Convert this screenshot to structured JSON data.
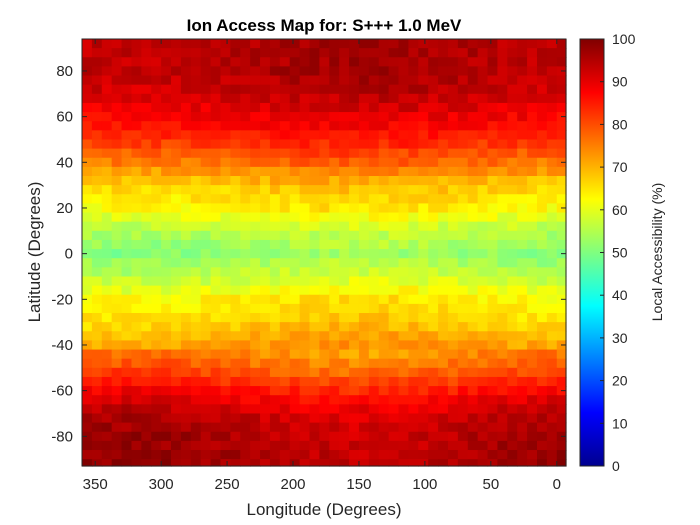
{
  "chart_data": {
    "type": "heatmap",
    "title": "Ion Access Map for: S+++ 1.0 MeV",
    "xlabel": "Longitude (Degrees)",
    "ylabel": "Latitude (Degrees)",
    "colorbar_label": "Local Accessibility (%)",
    "colormap": "jet",
    "xlim": [
      360,
      -7
    ],
    "x_reversed": true,
    "ylim": [
      -93,
      94
    ],
    "x_ticks": [
      350,
      300,
      250,
      200,
      150,
      100,
      50,
      0
    ],
    "x_tick_labels": [
      "350",
      "300",
      "250",
      "200",
      "150",
      "100",
      "50",
      "0"
    ],
    "y_ticks": [
      80,
      60,
      40,
      20,
      0,
      -20,
      -40,
      -60,
      -80
    ],
    "y_tick_labels": [
      "80",
      "60",
      "40",
      "20",
      "0",
      "-20",
      "-40",
      "-60",
      "-80"
    ],
    "clim": [
      0,
      100
    ],
    "colorbar_ticks": [
      0,
      10,
      20,
      30,
      40,
      50,
      60,
      70,
      80,
      90,
      100
    ],
    "colorbar_tick_labels": [
      "0",
      "10",
      "20",
      "30",
      "40",
      "50",
      "60",
      "70",
      "80",
      "90",
      "100"
    ],
    "grid": false,
    "latitude_profile": {
      "latitude": [
        90,
        80,
        70,
        60,
        50,
        40,
        30,
        20,
        10,
        0,
        -10,
        -20,
        -30,
        -40,
        -50,
        -60,
        -70,
        -80,
        -90
      ],
      "accessibility": [
        95,
        95,
        93,
        89,
        84,
        77,
        68,
        64,
        56,
        52,
        57,
        64,
        67,
        72,
        78,
        86,
        93,
        95,
        96
      ]
    }
  }
}
